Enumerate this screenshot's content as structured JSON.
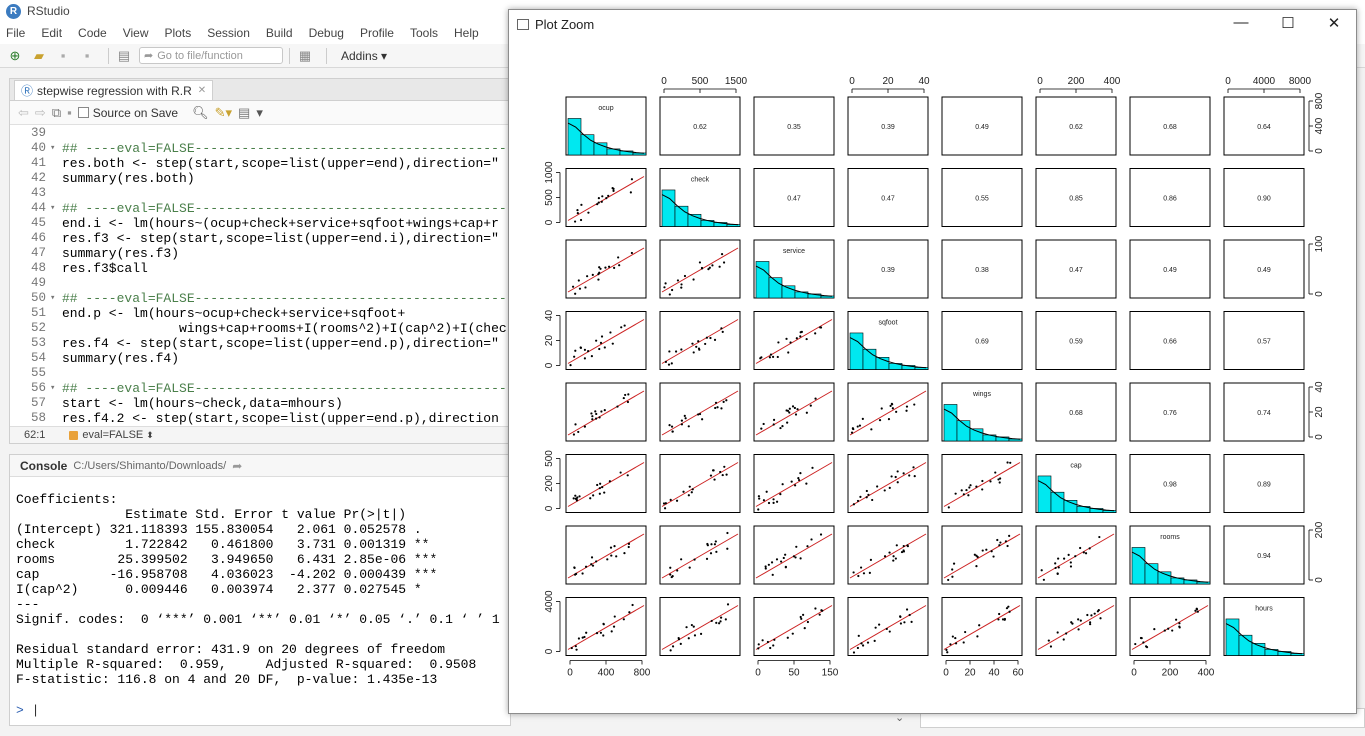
{
  "app": {
    "title": "RStudio"
  },
  "menu": [
    "File",
    "Edit",
    "Code",
    "View",
    "Plots",
    "Session",
    "Build",
    "Debug",
    "Profile",
    "Tools",
    "Help"
  ],
  "toolbar": {
    "goto_placeholder": "Go to file/function",
    "addins_label": "Addins"
  },
  "editor": {
    "tab_label": "stepwise regression with R.R",
    "source_on_save_label": "Source on Save",
    "status_position": "62:1",
    "status_chunk": "eval=FALSE",
    "lines": [
      {
        "n": "39",
        "fold": "",
        "text": "",
        "type": "code"
      },
      {
        "n": "40",
        "fold": "▾",
        "text": "## ----eval=FALSE---------------------------------------------",
        "type": "comment"
      },
      {
        "n": "41",
        "fold": "",
        "text": "res.both <- step(start,scope=list(upper=end),direction=\"",
        "type": "code"
      },
      {
        "n": "42",
        "fold": "",
        "text": "summary(res.both)",
        "type": "code"
      },
      {
        "n": "43",
        "fold": "",
        "text": "",
        "type": "code"
      },
      {
        "n": "44",
        "fold": "▾",
        "text": "## ----eval=FALSE---------------------------------------------",
        "type": "comment"
      },
      {
        "n": "45",
        "fold": "",
        "text": "end.i <- lm(hours~(ocup+check+service+sqfoot+wings+cap+r",
        "type": "code"
      },
      {
        "n": "46",
        "fold": "",
        "text": "res.f3 <- step(start,scope=list(upper=end.i),direction=\"",
        "type": "code"
      },
      {
        "n": "47",
        "fold": "",
        "text": "summary(res.f3)",
        "type": "code"
      },
      {
        "n": "48",
        "fold": "",
        "text": "res.f3$call",
        "type": "code"
      },
      {
        "n": "49",
        "fold": "",
        "text": "",
        "type": "code"
      },
      {
        "n": "50",
        "fold": "▾",
        "text": "## ----eval=FALSE---------------------------------------------",
        "type": "comment"
      },
      {
        "n": "51",
        "fold": "",
        "text": "end.p <- lm(hours~ocup+check+service+sqfoot+",
        "type": "code"
      },
      {
        "n": "52",
        "fold": "",
        "text": "               wings+cap+rooms+I(rooms^2)+I(cap^2)+I(chec",
        "type": "code"
      },
      {
        "n": "53",
        "fold": "",
        "text": "res.f4 <- step(start,scope=list(upper=end.p),direction=\"",
        "type": "code"
      },
      {
        "n": "54",
        "fold": "",
        "text": "summary(res.f4)",
        "type": "code"
      },
      {
        "n": "55",
        "fold": "",
        "text": "",
        "type": "code"
      },
      {
        "n": "56",
        "fold": "▾",
        "text": "## ----eval=FALSE---------------------------------------------",
        "type": "comment"
      },
      {
        "n": "57",
        "fold": "",
        "text": "start <- lm(hours~check,data=mhours)",
        "type": "code"
      },
      {
        "n": "58",
        "fold": "",
        "text": "res.f4.2 <- step(start,scope=list(upper=end.p),direction",
        "type": "code"
      }
    ]
  },
  "console": {
    "title": "Console",
    "path": "C:/Users/Shimanto/Downloads/",
    "lines": [
      "Coefficients:",
      "              Estimate Std. Error t value Pr(>|t|)    ",
      "(Intercept) 321.118393 155.830054   2.061 0.052578 .  ",
      "check         1.722842   0.461800   3.731 0.001319 ** ",
      "rooms        25.399502   3.949650   6.431 2.85e-06 ***",
      "cap         -16.958708   4.036023  -4.202 0.000439 ***",
      "I(cap^2)      0.009446   0.003974   2.377 0.027545 *  ",
      "---",
      "Signif. codes:  0 ‘***’ 0.001 ‘**’ 0.01 ‘*’ 0.05 ‘.’ 0.1 ‘ ’ 1",
      "",
      "Residual standard error: 431.9 on 20 degrees of freedom",
      "Multiple R-squared:  0.959,\tAdjusted R-squared:  0.9508 ",
      "F-statistic: 116.8 on 4 and 20 DF,  p-value: 1.435e-13"
    ],
    "prompt": ">"
  },
  "plot_zoom": {
    "title": "Plot Zoom",
    "controls": {
      "minimize": "—",
      "maximize": "☐",
      "close": "✕"
    }
  },
  "chart_data": {
    "type": "scatter",
    "title": "",
    "variables": [
      "ocup",
      "check",
      "service",
      "sqfoot",
      "wings",
      "cap",
      "rooms",
      "hours"
    ],
    "correlations_upper": [
      [
        "",
        "0.62",
        "0.35",
        "0.39",
        "0.49",
        "0.62",
        "0.68",
        "0.64"
      ],
      [
        "",
        "",
        "0.47",
        "0.47",
        "0.55",
        "0.85",
        "0.86",
        "0.90"
      ],
      [
        "",
        "",
        "",
        "0.39",
        "0.38",
        "0.47",
        "0.49",
        "0.49"
      ],
      [
        "",
        "",
        "",
        "",
        "0.69",
        "0.59",
        "0.66",
        "0.57"
      ],
      [
        "",
        "",
        "",
        "",
        "",
        "0.68",
        "0.76",
        "0.74"
      ],
      [
        "",
        "",
        "",
        "",
        "",
        "",
        "0.98",
        "0.89"
      ],
      [
        "",
        "",
        "",
        "",
        "",
        "",
        "",
        "0.94"
      ]
    ],
    "top_axis_ticks": [
      [
        "0",
        "500",
        "1500"
      ],
      [
        "0",
        "20",
        "40"
      ],
      [
        "0",
        "200",
        "400"
      ],
      [
        "0",
        "4000",
        "8000"
      ]
    ],
    "bottom_axis_ticks": [
      [
        "0",
        "400",
        "800"
      ],
      [
        "0",
        "50",
        "150"
      ],
      [
        "0",
        "20",
        "40",
        "60"
      ],
      [
        "0",
        "200",
        "400"
      ]
    ],
    "left_axis_ticks": [
      [
        "0",
        "500",
        "1000"
      ],
      [
        "0",
        "20",
        "40"
      ],
      [
        "0",
        "200",
        "500"
      ],
      [
        "0",
        "4000"
      ]
    ],
    "right_axis_ticks": [
      [
        "0",
        "400",
        "800"
      ],
      [
        "0",
        "100"
      ],
      [
        "0",
        "20",
        "40"
      ],
      [
        "0",
        "200"
      ]
    ],
    "colors": {
      "histogram": "#00e8f0",
      "fit_line": "#cc2222"
    }
  }
}
